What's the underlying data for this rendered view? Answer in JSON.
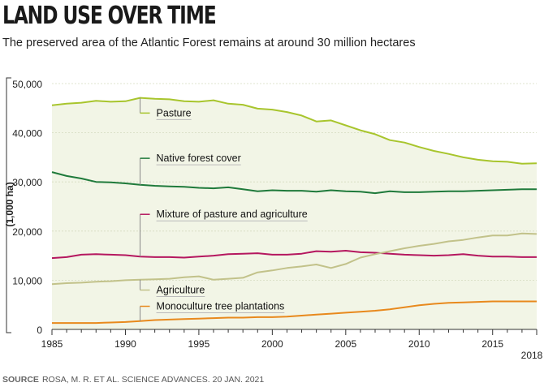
{
  "title": "LAND USE OVER TIME",
  "subtitle": "The preserved area of the Atlantic Forest remains at around 30 million hectares",
  "source": {
    "label": "SOURCE",
    "text": "ROSA, M. R. ET AL. SCIENCE ADVANCES. 20 JAN. 2021"
  },
  "colors": {
    "background_fill": "#f2f5e6",
    "axis": "#333333",
    "grid": "#d5dcc0"
  },
  "chart_data": {
    "type": "line",
    "ylabel": "(1,000 ha)",
    "xlim": [
      1985,
      2018
    ],
    "ylim": [
      0,
      50000
    ],
    "x_ticks": [
      1985,
      1990,
      1995,
      2000,
      2005,
      2010,
      2015,
      2018
    ],
    "x_tick_labels": [
      "1985",
      "1990",
      "1995",
      "2000",
      "2005",
      "2010",
      "2015",
      "2018"
    ],
    "y_ticks": [
      0,
      10000,
      20000,
      30000,
      40000,
      50000
    ],
    "y_tick_labels": [
      "0",
      "10,000",
      "20,000",
      "30,000",
      "40,000",
      "50,000"
    ],
    "grid": true,
    "area_under_top_series": true,
    "x": [
      1985,
      1986,
      1987,
      1988,
      1989,
      1990,
      1991,
      1992,
      1993,
      1994,
      1995,
      1996,
      1997,
      1998,
      1999,
      2000,
      2001,
      2002,
      2003,
      2004,
      2005,
      2006,
      2007,
      2008,
      2009,
      2010,
      2011,
      2012,
      2013,
      2014,
      2015,
      2016,
      2017,
      2018
    ],
    "series": [
      {
        "name": "Pasture",
        "color": "#a8c52d",
        "label_x": 1991,
        "label_y": 44000,
        "values": [
          45600,
          45900,
          46100,
          46500,
          46300,
          46400,
          47100,
          46900,
          46800,
          46400,
          46300,
          46600,
          45900,
          45700,
          44900,
          44700,
          44200,
          43500,
          42300,
          42500,
          41500,
          40500,
          39700,
          38500,
          38000,
          37100,
          36300,
          35700,
          35000,
          34500,
          34200,
          34100,
          33700,
          33800
        ]
      },
      {
        "name": "Native forest cover",
        "color": "#1f7a3b",
        "label_x": 1991,
        "label_y": 34800,
        "values": [
          32000,
          31200,
          30700,
          30000,
          29900,
          29700,
          29400,
          29200,
          29100,
          29000,
          28800,
          28700,
          28900,
          28500,
          28100,
          28300,
          28200,
          28200,
          28000,
          28300,
          28100,
          28000,
          27700,
          28100,
          27900,
          27900,
          28000,
          28100,
          28100,
          28200,
          28300,
          28400,
          28500,
          28500
        ]
      },
      {
        "name": "Mixture of pasture and agriculture",
        "color": "#b5175f",
        "label_x": 1991,
        "label_y": 23400,
        "values": [
          14500,
          14700,
          15200,
          15300,
          15200,
          15100,
          14800,
          14700,
          14700,
          14600,
          14800,
          15000,
          15300,
          15400,
          15500,
          15200,
          15200,
          15400,
          15900,
          15800,
          16000,
          15700,
          15600,
          15400,
          15200,
          15100,
          15000,
          15100,
          15300,
          15000,
          14800,
          14800,
          14700,
          14700
        ]
      },
      {
        "name": "Agriculture",
        "color": "#c2c28a",
        "label_x": 1991,
        "label_y": 8000,
        "values": [
          9200,
          9400,
          9500,
          9700,
          9800,
          10000,
          10100,
          10200,
          10300,
          10600,
          10800,
          10100,
          10300,
          10500,
          11600,
          12000,
          12500,
          12800,
          13200,
          12500,
          13300,
          14600,
          15300,
          15900,
          16500,
          17000,
          17400,
          17900,
          18200,
          18700,
          19100,
          19100,
          19500,
          19400
        ]
      },
      {
        "name": "Monoculture tree plantations",
        "color": "#e8891d",
        "label_x": 1991,
        "label_y": 4700,
        "values": [
          1300,
          1300,
          1300,
          1300,
          1400,
          1500,
          1700,
          1900,
          2000,
          2100,
          2200,
          2300,
          2400,
          2400,
          2500,
          2500,
          2600,
          2800,
          3000,
          3200,
          3400,
          3600,
          3800,
          4100,
          4500,
          4900,
          5200,
          5400,
          5500,
          5600,
          5700,
          5700,
          5700,
          5700
        ]
      }
    ]
  }
}
